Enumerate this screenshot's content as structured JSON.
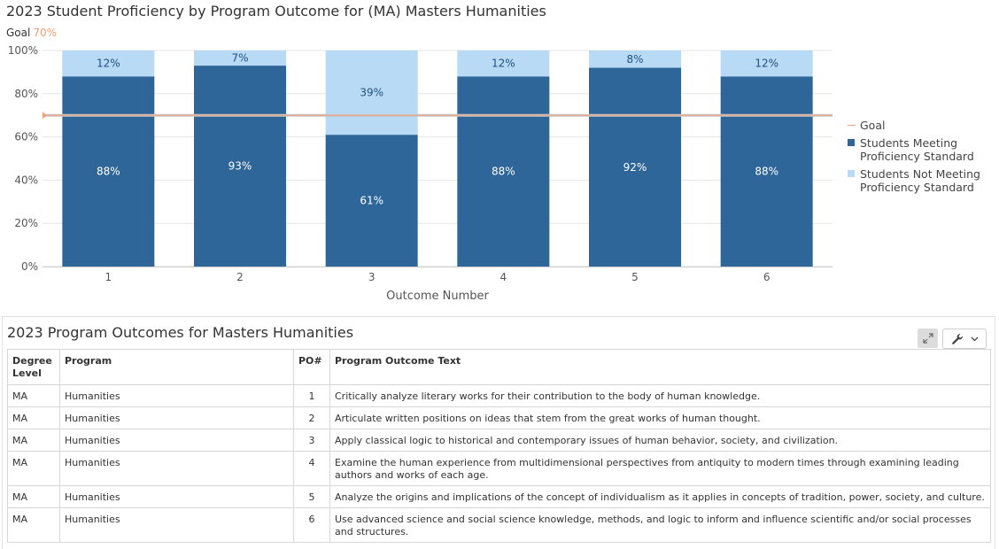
{
  "chart": {
    "title": "2023 Student Proficiency by Program Outcome for (MA) Masters Humanities",
    "goal_label": "Goal",
    "goal_value_text": "70%"
  },
  "colors": {
    "meeting": "#2f6699",
    "not_meeting": "#b8daf5",
    "goal": "#f0a07a",
    "goal_band": "#c8c8c8"
  },
  "chart_data": {
    "type": "bar",
    "stacked": true,
    "title": "2023 Student Proficiency by Program Outcome for (MA) Masters Humanities",
    "xlabel": "Outcome Number",
    "ylabel": "",
    "categories": [
      "1",
      "2",
      "3",
      "4",
      "5",
      "6"
    ],
    "series": [
      {
        "name": "Students Meeting Proficiency Standard",
        "values": [
          88,
          93,
          61,
          88,
          92,
          88
        ],
        "labels": [
          "88%",
          "93%",
          "61%",
          "88%",
          "92%",
          "88%"
        ]
      },
      {
        "name": "Students Not Meeting Proficiency Standard",
        "values": [
          12,
          7,
          39,
          12,
          8,
          12
        ],
        "labels": [
          "12%",
          "7%",
          "39%",
          "12%",
          "8%",
          "12%"
        ]
      }
    ],
    "goal": {
      "name": "Goal",
      "value": 70
    },
    "ylim": [
      0,
      100
    ],
    "yticks": [
      0,
      20,
      40,
      60,
      80,
      100
    ],
    "ytick_labels": [
      "0%",
      "20%",
      "40%",
      "60%",
      "80%",
      "100%"
    ],
    "grid": true,
    "legend_position": "right"
  },
  "legend": {
    "goal": "Goal",
    "meeting": "Students Meeting Proficiency Standard",
    "not_meeting": "Students Not Meeting Proficiency Standard"
  },
  "outcomes_panel": {
    "title": "2023 Program Outcomes for Masters Humanities",
    "expand_icon": "expand-icon",
    "tools_icon": "wrench-icon",
    "headers": {
      "degree_level": "Degree Level",
      "program": "Program",
      "po_number": "PO#",
      "outcome_text": "Program Outcome Text"
    },
    "rows": [
      {
        "degree": "MA",
        "program": "Humanities",
        "po": "1",
        "text": "Critically analyze literary works for their contribution to the body of human knowledge."
      },
      {
        "degree": "MA",
        "program": "Humanities",
        "po": "2",
        "text": "Articulate written positions on ideas that stem from the great works of human thought."
      },
      {
        "degree": "MA",
        "program": "Humanities",
        "po": "3",
        "text": "Apply classical logic to historical and contemporary issues of human behavior, society, and civilization."
      },
      {
        "degree": "MA",
        "program": "Humanities",
        "po": "4",
        "text": "Examine the human experience from multidimensional perspectives from antiquity to modern times through examining leading authors and works of each age."
      },
      {
        "degree": "MA",
        "program": "Humanities",
        "po": "5",
        "text": "Analyze the origins and implications of the concept of individualism as it applies in concepts of tradition, power, society, and culture."
      },
      {
        "degree": "MA",
        "program": "Humanities",
        "po": "6",
        "text": "Use advanced science and social science knowledge, methods, and logic to inform and influence scientific and/or social processes and structures."
      }
    ]
  }
}
